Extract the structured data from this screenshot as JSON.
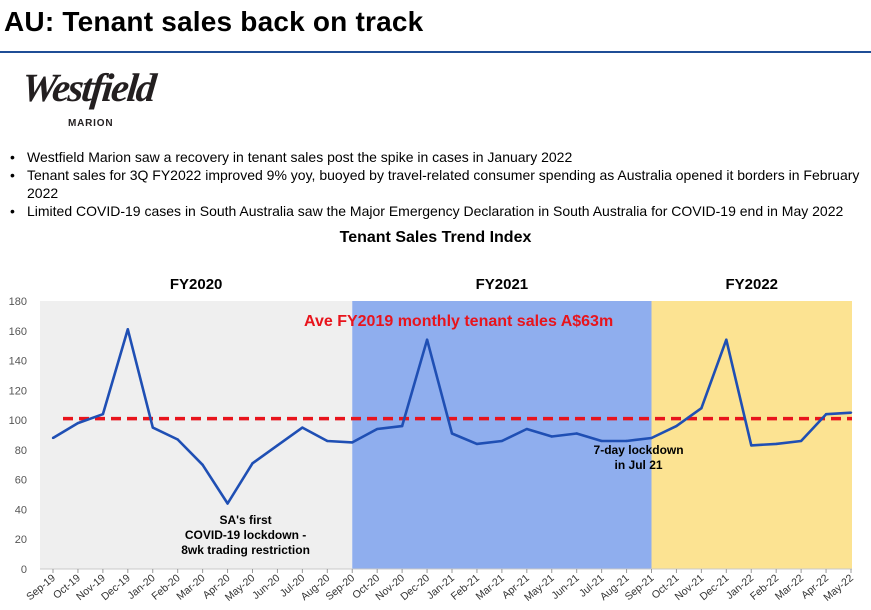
{
  "page": {
    "title": "AU: Tenant sales back on track",
    "logo": {
      "wordmark": "Westfield",
      "sub": "MARION"
    },
    "bullets": [
      "Westfield Marion saw a recovery in tenant sales post the spike in cases in January 2022",
      "Tenant sales for 3Q FY2022 improved 9% yoy, buoyed by travel-related consumer spending as Australia opened it borders in February 2022",
      "Limited COVID-19 cases in South Australia saw the Major Emergency Declaration in South Australia for COVID-19 end in May 2022"
    ]
  },
  "colors": {
    "accent_rule": "#1f4e96",
    "line": "#1f4fb4",
    "reference": "#e8141c",
    "fy2020_band": "#efefef",
    "fy2021_band": "#8faeee",
    "fy2022_band": "#fce392"
  },
  "chart_data": {
    "type": "line",
    "title": "Tenant Sales Trend Index",
    "x": [
      "Sep-19",
      "Oct-19",
      "Nov-19",
      "Dec-19",
      "Jan-20",
      "Feb-20",
      "Mar-20",
      "Apr-20",
      "May-20",
      "Jun-20",
      "Jul-20",
      "Aug-20",
      "Sep-20",
      "Oct-20",
      "Nov-20",
      "Dec-20",
      "Jan-21",
      "Feb-21",
      "Mar-21",
      "Apr-21",
      "May-21",
      "Jun-21",
      "Jul-21",
      "Aug-21",
      "Sep-21",
      "Oct-21",
      "Nov-21",
      "Dec-21",
      "Jan-22",
      "Feb-22",
      "Mar-22",
      "Apr-22",
      "May-22"
    ],
    "series": [
      {
        "values": [
          88,
          98,
          104,
          161,
          95,
          87,
          70,
          44,
          71,
          83,
          95,
          86,
          85,
          94,
          96,
          154,
          91,
          84,
          86,
          94,
          89,
          91,
          86,
          86,
          88,
          96,
          108,
          154,
          83,
          84,
          86,
          104,
          105
        ]
      }
    ],
    "ylim": [
      0,
      180
    ],
    "yticks": [
      "0",
      "20",
      "40",
      "60",
      "80",
      "100",
      "120",
      "140",
      "160",
      "180"
    ],
    "reference_line": {
      "value": 101,
      "label": "Ave FY2019 monthly tenant sales A$63m"
    },
    "periods": [
      {
        "label": "FY2020",
        "start": "Sep-19",
        "end": "Sep-20"
      },
      {
        "label": "FY2021",
        "start": "Sep-20",
        "end": "Sep-21"
      },
      {
        "label": "FY2022",
        "start": "Sep-21",
        "end": "May-22"
      }
    ],
    "annotations": [
      {
        "lines": [
          "SA's first",
          "COVID-19 lockdown -",
          "8wk trading restriction"
        ],
        "month": "Apr-20"
      },
      {
        "lines": [
          "7-day lockdown",
          "in Jul 21"
        ],
        "month": "Aug-21"
      }
    ]
  }
}
